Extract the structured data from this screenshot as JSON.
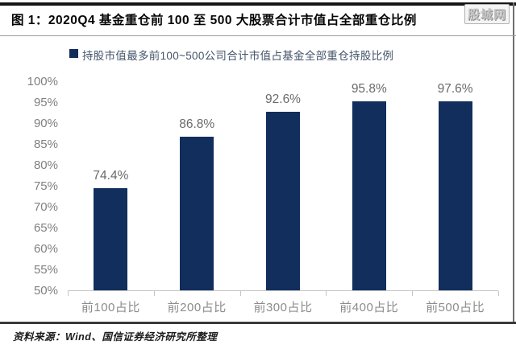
{
  "header": {
    "title": "图 1：2020Q4 基金重仓前 100 至 500 大股票合计市值占全部重仓比例",
    "watermark": "股城网"
  },
  "chart_data": {
    "type": "bar",
    "title": "2020Q4基金重仓前100至500大股票合计市值占全部重仓比例",
    "categories": [
      "前100占比",
      "前200占比",
      "前300占比",
      "前400占比",
      "前500占比"
    ],
    "values": [
      74.4,
      86.8,
      92.6,
      95.8,
      97.6
    ],
    "data_labels": [
      "74.4%",
      "86.8%",
      "92.6%",
      "95.8%",
      "97.6%"
    ],
    "yticks": [
      "100%",
      "95%",
      "90%",
      "85%",
      "80%",
      "75%",
      "70%",
      "65%",
      "60%",
      "55%",
      "50%"
    ],
    "ylim": [
      50,
      100
    ],
    "ytick_step": 5,
    "grid": false,
    "legend": "持股市值最多前100~500公司合计市值占基金全部重仓持股比例",
    "legend_position": "top",
    "bar_color": "#112e5c",
    "value_label_color": "#6a6a6a",
    "axis_label_color": "#808080"
  },
  "footer": {
    "source": "资料来源：Wind、国信证券经济研究所整理"
  }
}
